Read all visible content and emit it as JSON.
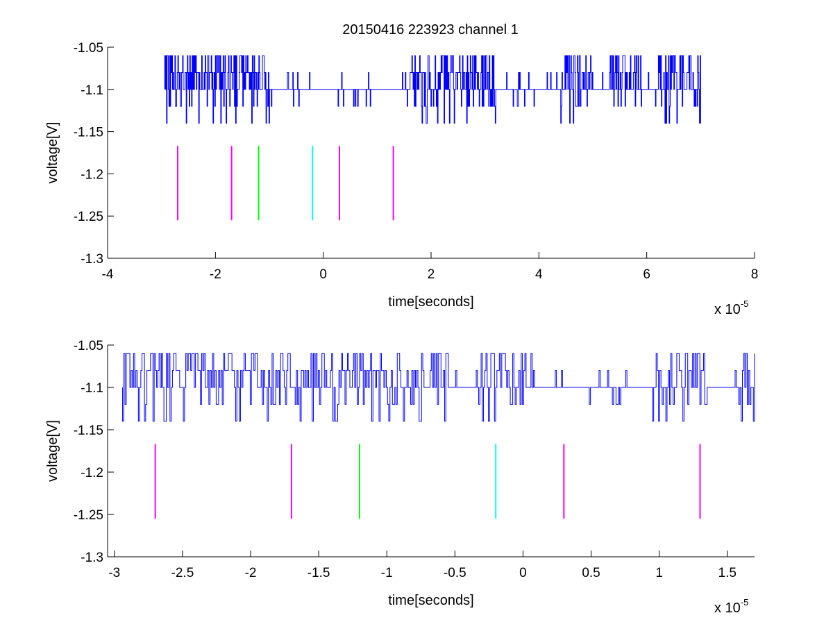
{
  "figure": {
    "title": "20150416 223923 channel 1"
  },
  "chart_data": [
    {
      "type": "line",
      "title": "20150416 223923 channel 1",
      "xlabel": "time[seconds]",
      "ylabel": "voltage[V]",
      "x_multiplier": {
        "base": "x 10",
        "exponent": "-5"
      },
      "xlim": [
        -4,
        8
      ],
      "ylim": [
        -1.3,
        -1.05
      ],
      "x_ticks": [
        -4,
        -2,
        0,
        2,
        4,
        6,
        8
      ],
      "x_tick_labels": [
        "-4",
        "-2",
        "0",
        "2",
        "4",
        "6",
        "8"
      ],
      "y_ticks": [
        -1.05,
        -1.1,
        -1.15,
        -1.2,
        -1.25,
        -1.3
      ],
      "y_tick_labels": [
        "-1.05",
        "-1.1",
        "-1.15",
        "-1.2",
        "-1.25",
        "-1.3"
      ],
      "grid": false,
      "series": [
        {
          "color": "#0000ff",
          "x_range": [
            -2.94,
            7.0
          ],
          "levels": [
            -1.06,
            -1.08,
            -1.1,
            -1.12,
            -1.14
          ],
          "quiet_intervals": [
            [
              -1.0,
              1.6
            ],
            [
              3.2,
              4.4
            ],
            [
              5.0,
              5.3
            ],
            [
              5.9,
              6.2
            ]
          ],
          "note": "noisy digitized signal around -1.1 V"
        }
      ],
      "markers": [
        {
          "x": -2.7,
          "y_range": [
            -1.255,
            -1.167
          ],
          "color": "#ff00ff"
        },
        {
          "x": -1.7,
          "y_range": [
            -1.255,
            -1.167
          ],
          "color": "#ff00ff"
        },
        {
          "x": -1.2,
          "y_range": [
            -1.255,
            -1.167
          ],
          "color": "#00ff00"
        },
        {
          "x": -0.2,
          "y_range": [
            -1.255,
            -1.167
          ],
          "color": "#00ffff"
        },
        {
          "x": 0.3,
          "y_range": [
            -1.255,
            -1.167
          ],
          "color": "#ff00ff"
        },
        {
          "x": 1.3,
          "y_range": [
            -1.255,
            -1.167
          ],
          "color": "#ff00ff"
        }
      ]
    },
    {
      "type": "line",
      "title": "",
      "xlabel": "time[seconds]",
      "ylabel": "voltage[V]",
      "x_multiplier": {
        "base": "x 10",
        "exponent": "-5"
      },
      "xlim": [
        -3.05,
        1.7
      ],
      "ylim": [
        -1.3,
        -1.05
      ],
      "x_ticks": [
        -3,
        -2.5,
        -2,
        -1.5,
        -1,
        -0.5,
        0,
        0.5,
        1,
        1.5
      ],
      "x_tick_labels": [
        "-3",
        "-2.5",
        "-2",
        "-1.5",
        "-1",
        "-0.5",
        "0",
        "0.5",
        "1",
        "1.5"
      ],
      "y_ticks": [
        -1.05,
        -1.1,
        -1.15,
        -1.2,
        -1.25,
        -1.3
      ],
      "y_tick_labels": [
        "-1.05",
        "-1.1",
        "-1.15",
        "-1.2",
        "-1.25",
        "-1.3"
      ],
      "grid": false,
      "series": [
        {
          "color": "#0000ff",
          "x_range": [
            -2.94,
            1.7
          ],
          "levels": [
            -1.06,
            -1.08,
            -1.1,
            -1.12,
            -1.14
          ],
          "quiet_intervals": [
            [
              -0.55,
              -0.35
            ],
            [
              0.1,
              0.95
            ],
            [
              1.35,
              1.55
            ]
          ],
          "note": "zoomed view of the same signal"
        }
      ],
      "markers": [
        {
          "x": -2.7,
          "y_range": [
            -1.255,
            -1.167
          ],
          "color": "#ff00ff"
        },
        {
          "x": -1.7,
          "y_range": [
            -1.255,
            -1.167
          ],
          "color": "#ff00ff"
        },
        {
          "x": -1.2,
          "y_range": [
            -1.255,
            -1.167
          ],
          "color": "#00ff00"
        },
        {
          "x": -0.2,
          "y_range": [
            -1.255,
            -1.167
          ],
          "color": "#00ffff"
        },
        {
          "x": 0.3,
          "y_range": [
            -1.255,
            -1.167
          ],
          "color": "#ff00ff"
        },
        {
          "x": 1.3,
          "y_range": [
            -1.255,
            -1.167
          ],
          "color": "#ff00ff"
        }
      ]
    }
  ]
}
